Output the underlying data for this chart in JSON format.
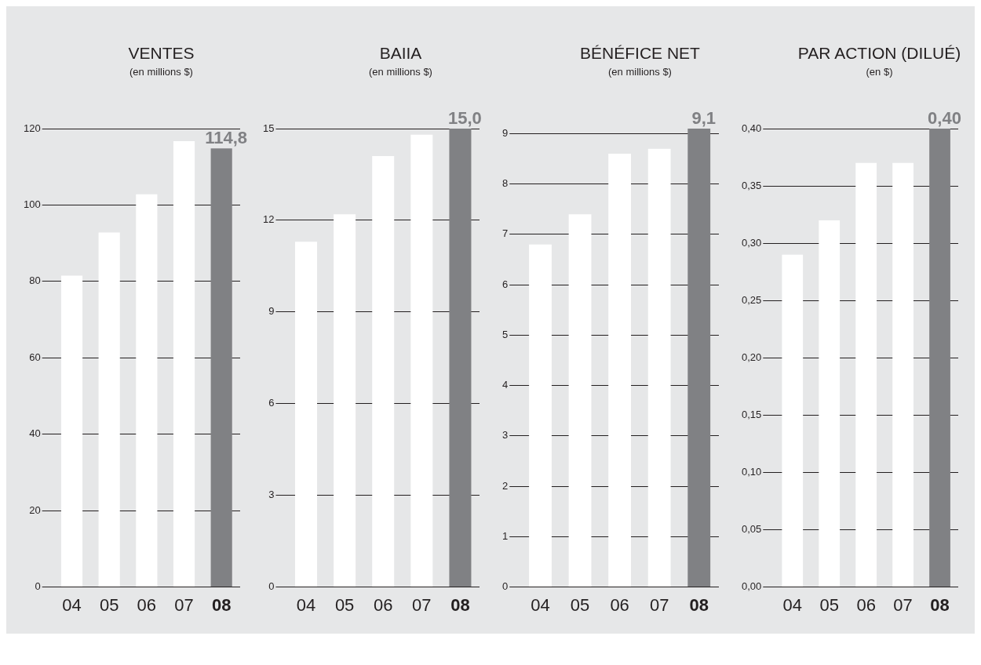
{
  "chart_data": [
    {
      "type": "bar",
      "title": "VENTES",
      "subtitle": "(en millions $)",
      "categories": [
        "04",
        "05",
        "06",
        "07",
        "08"
      ],
      "values": [
        81.5,
        92.8,
        102.8,
        116.7,
        114.8
      ],
      "colors": [
        "#ffffff",
        "#ffffff",
        "#ffffff",
        "#ffffff",
        "#808184"
      ],
      "value_labels": [
        null,
        null,
        null,
        null,
        "114,8"
      ],
      "ylim": [
        0,
        120
      ],
      "yticks": [
        0,
        20,
        40,
        60,
        80,
        100,
        120
      ],
      "grid": "y",
      "legend": false
    },
    {
      "type": "bar",
      "title": "BAIIA",
      "subtitle": "(en millions $)",
      "categories": [
        "04",
        "05",
        "06",
        "07",
        "08"
      ],
      "values": [
        11.3,
        12.2,
        14.1,
        14.8,
        15.0
      ],
      "colors": [
        "#ffffff",
        "#ffffff",
        "#ffffff",
        "#ffffff",
        "#808184"
      ],
      "value_labels": [
        null,
        null,
        null,
        null,
        "15,0"
      ],
      "ylim": [
        0,
        15
      ],
      "yticks": [
        0,
        3,
        6,
        9,
        12,
        15
      ],
      "grid": "y",
      "legend": false
    },
    {
      "type": "bar",
      "title": "BÉNÉFICE NET",
      "subtitle": "(en millions $)",
      "categories": [
        "04",
        "05",
        "06",
        "07",
        "08"
      ],
      "values": [
        6.8,
        7.4,
        8.6,
        8.7,
        9.1
      ],
      "colors": [
        "#ffffff",
        "#ffffff",
        "#ffffff",
        "#ffffff",
        "#808184"
      ],
      "value_labels": [
        null,
        null,
        null,
        null,
        "9,1"
      ],
      "ylim": [
        0,
        9.1
      ],
      "yticks": [
        0,
        1,
        2,
        3,
        4,
        5,
        6,
        7,
        8,
        9
      ],
      "grid": "y",
      "legend": false
    },
    {
      "type": "bar",
      "title": "PAR ACTION (DILUÉ)",
      "subtitle": "(en $)",
      "categories": [
        "04",
        "05",
        "06",
        "07",
        "08"
      ],
      "values": [
        0.29,
        0.32,
        0.37,
        0.37,
        0.4
      ],
      "colors": [
        "#ffffff",
        "#ffffff",
        "#ffffff",
        "#ffffff",
        "#808184"
      ],
      "value_labels": [
        null,
        null,
        null,
        null,
        "0,40"
      ],
      "ylim": [
        0,
        0.4
      ],
      "yticks": [
        {
          "value": 0,
          "label": "0,00"
        },
        {
          "value": 0.05,
          "label": "0,05"
        },
        {
          "value": 0.1,
          "label": "0,10"
        },
        {
          "value": 0.15,
          "label": "0,15"
        },
        {
          "value": 0.2,
          "label": "0,20"
        },
        {
          "value": 0.25,
          "label": "0,25"
        },
        {
          "value": 0.3,
          "label": "0,30"
        },
        {
          "value": 0.35,
          "label": "0,35"
        },
        {
          "value": 0.4,
          "label": "0,40"
        }
      ],
      "grid": "y",
      "legend": false
    }
  ]
}
